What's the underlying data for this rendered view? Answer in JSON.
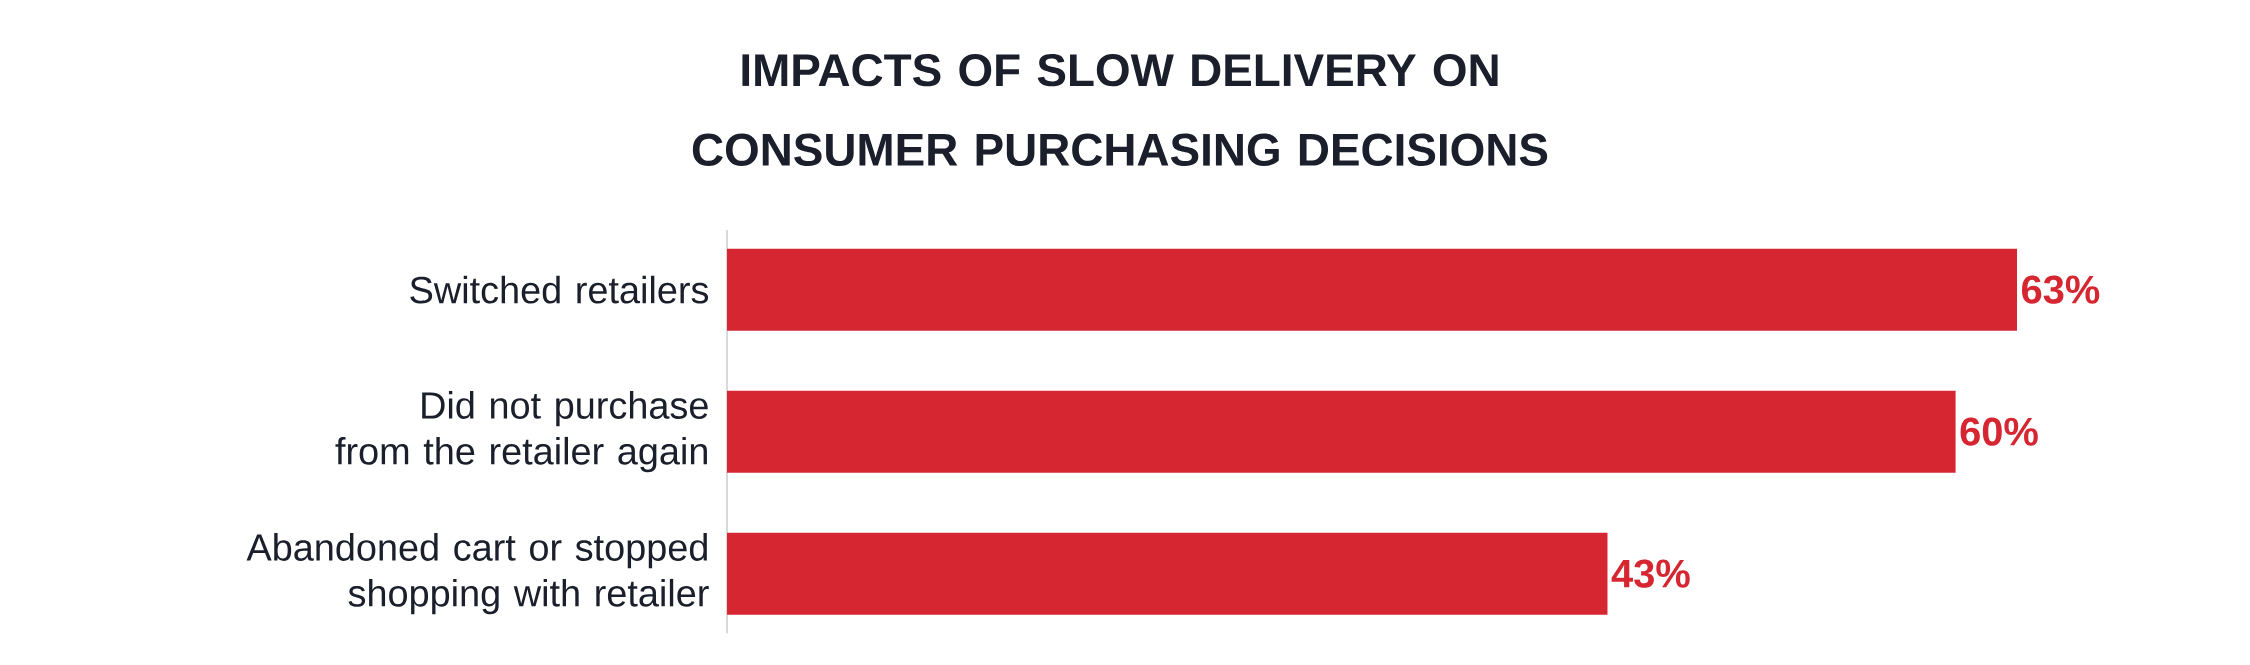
{
  "chart_data": {
    "type": "bar",
    "orientation": "horizontal",
    "title": "IMPACTS OF SLOW DELIVERY ON CONSUMER PURCHASING DECISIONS",
    "categories": [
      "Switched retailers",
      "Did not purchase from the retailer again",
      "Abandoned cart or stopped shopping with retailer"
    ],
    "values": [
      63,
      60,
      43
    ],
    "color": "#d62631",
    "value_labels": [
      "63%",
      "60%",
      "43%"
    ]
  }
}
